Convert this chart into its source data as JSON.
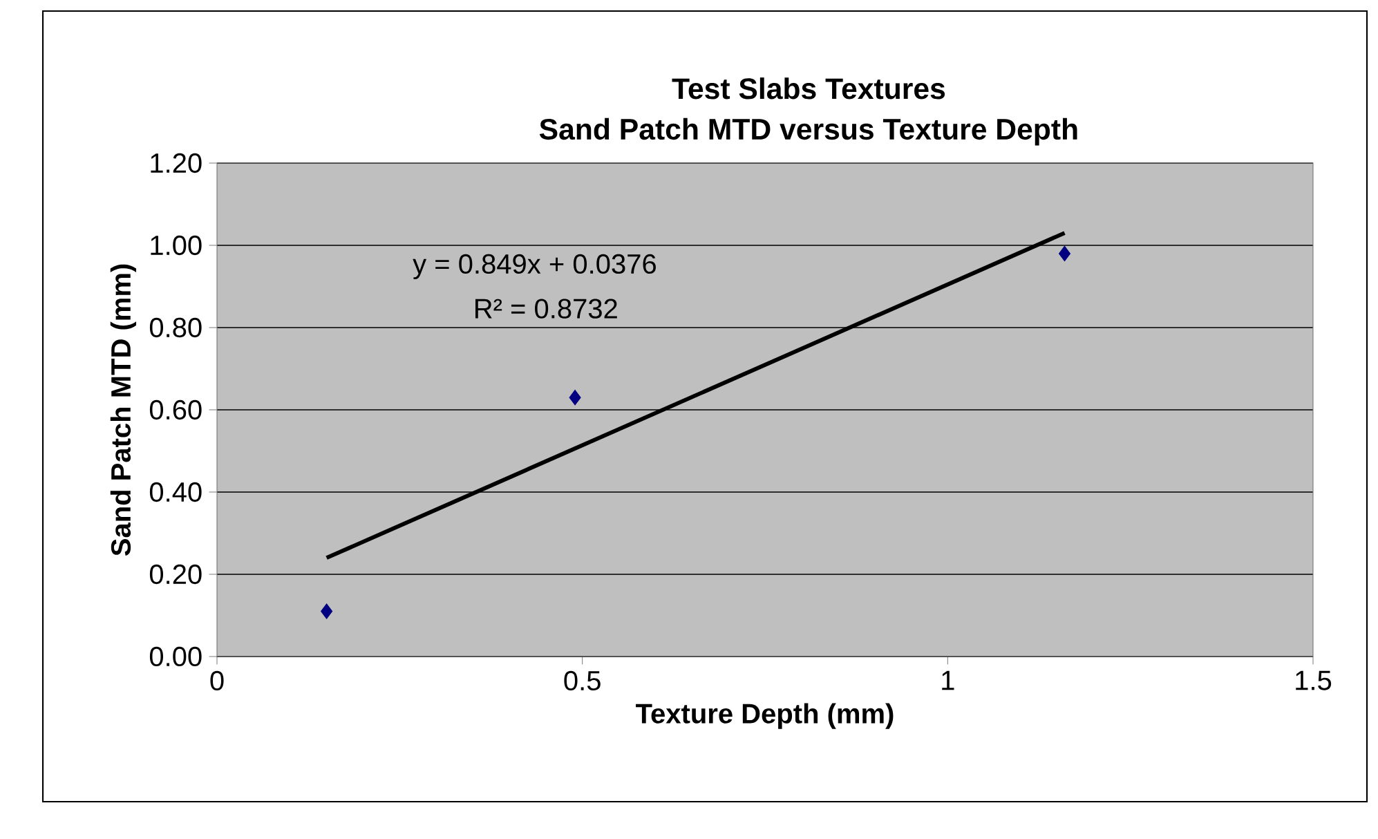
{
  "chart_data": {
    "type": "scatter",
    "title": "Test Slabs Textures",
    "subtitle": "Sand Patch MTD versus Texture Depth",
    "xlabel": "Texture Depth (mm)",
    "ylabel": "Sand Patch MTD (mm)",
    "series": [
      {
        "color": "#000080",
        "marker": "diamond",
        "x": [
          0.15,
          0.49,
          1.16
        ],
        "values": [
          0.11,
          0.63,
          0.98
        ]
      },
      {
        "type": "line",
        "color": "#000000",
        "marker": "none",
        "line_style": "solid",
        "x": [
          0.15,
          1.16
        ],
        "values": [
          0.24,
          1.03
        ]
      }
    ],
    "annotations": [
      "y = 0.849x + 0.0376",
      "R² = 0.8732"
    ],
    "xlim": [
      0,
      1.5
    ],
    "xticks": [
      0,
      0.5,
      1,
      1.5
    ],
    "ylim": [
      0,
      1.2
    ],
    "yticks": [
      {
        "value": 0,
        "label": "0.00"
      },
      {
        "value": 0.2,
        "label": "0.20"
      },
      {
        "value": 0.4,
        "label": "0.40"
      },
      {
        "value": 0.6,
        "label": "0.60"
      },
      {
        "value": 0.8,
        "label": "0.80"
      },
      {
        "value": 1.0,
        "label": "1.00"
      },
      {
        "value": 1.2,
        "label": "1.20"
      }
    ],
    "grid": "y"
  }
}
